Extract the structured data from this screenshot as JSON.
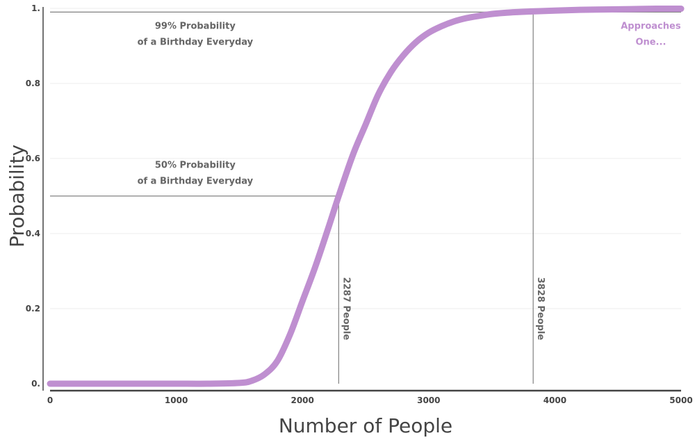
{
  "chart_data": {
    "type": "line",
    "xlabel": "Number of People",
    "ylabel": "Probability",
    "xlim": [
      0,
      5000
    ],
    "ylim": [
      0,
      1
    ],
    "x_ticks": [
      {
        "value": 0,
        "label": "0"
      },
      {
        "value": 1000,
        "label": "1000"
      },
      {
        "value": 2000,
        "label": "2000"
      },
      {
        "value": 3000,
        "label": "3000"
      },
      {
        "value": 4000,
        "label": "4000"
      },
      {
        "value": 5000,
        "label": "5000"
      }
    ],
    "y_ticks": [
      {
        "value": 0,
        "label": "0."
      },
      {
        "value": 0.2,
        "label": "0.2"
      },
      {
        "value": 0.4,
        "label": "0.4"
      },
      {
        "value": 0.6,
        "label": "0.6"
      },
      {
        "value": 0.8,
        "label": "0.8"
      },
      {
        "value": 1,
        "label": "1."
      }
    ],
    "grid": true,
    "series_color": "#bf8fd0",
    "series": [
      {
        "x": [
          0,
          250,
          500,
          750,
          1000,
          1250,
          1500,
          1600,
          1700,
          1800,
          1900,
          2000,
          2100,
          2200,
          2287,
          2400,
          2500,
          2600,
          2700,
          2800,
          2900,
          3000,
          3100,
          3200,
          3300,
          3400,
          3500,
          3600,
          3700,
          3828,
          4000,
          4200,
          4400,
          4600,
          4800,
          5000
        ],
        "values": [
          0,
          0,
          0,
          0,
          0,
          0,
          0.002,
          0.008,
          0.025,
          0.06,
          0.13,
          0.22,
          0.31,
          0.41,
          0.5,
          0.61,
          0.69,
          0.77,
          0.83,
          0.875,
          0.91,
          0.935,
          0.952,
          0.965,
          0.974,
          0.98,
          0.985,
          0.988,
          0.99,
          0.992,
          0.994,
          0.996,
          0.997,
          0.998,
          0.999,
          0.999
        ]
      }
    ],
    "reference_lines": [
      {
        "type": "horizontal",
        "y": 0.99,
        "x_from": 0,
        "x_to": 5000
      },
      {
        "type": "horizontal",
        "y": 0.5,
        "x_from": 0,
        "x_to": 2287
      },
      {
        "type": "vertical",
        "x": 2287,
        "y_from": 0,
        "y_to": 0.5
      },
      {
        "type": "vertical",
        "x": 3828,
        "y_from": 0,
        "y_to": 0.99
      }
    ],
    "annotations": [
      {
        "lines": [
          "99% Probability",
          "of a Birthday Everyday"
        ],
        "x": 1150,
        "y": 0.945,
        "style": "gray"
      },
      {
        "lines": [
          "50% Probability",
          "of a Birthday Everyday"
        ],
        "x": 1150,
        "y": 0.575,
        "style": "gray"
      },
      {
        "lines": [
          "Approaches",
          "One..."
        ],
        "x": 4760,
        "y": 0.945,
        "style": "accent"
      },
      {
        "lines": [
          "2287 People"
        ],
        "x": 2287,
        "y": 0.2,
        "style": "vertical"
      },
      {
        "lines": [
          "3828 People"
        ],
        "x": 3828,
        "y": 0.2,
        "style": "vertical"
      }
    ]
  }
}
